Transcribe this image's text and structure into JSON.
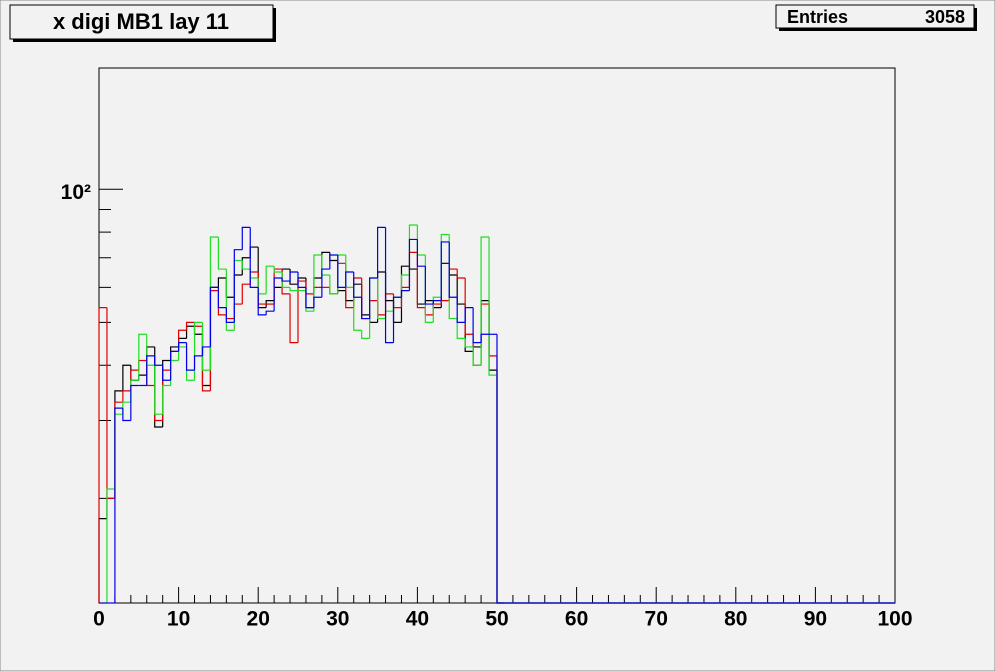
{
  "chart_data": {
    "type": "histogram",
    "title": "x digi MB1 lay 11",
    "stats": [
      {
        "label": "Entries",
        "value": 3058
      }
    ],
    "log_y": true,
    "bins": [
      0,
      1,
      2,
      3,
      4,
      5,
      6,
      7,
      8,
      9,
      10,
      11,
      12,
      13,
      14,
      15,
      16,
      17,
      18,
      19,
      20,
      21,
      22,
      23,
      24,
      25,
      26,
      27,
      28,
      29,
      30,
      31,
      32,
      33,
      34,
      35,
      36,
      37,
      38,
      39,
      40,
      41,
      42,
      43,
      44,
      45,
      46,
      47,
      48,
      49,
      50,
      51,
      52,
      53,
      54,
      55,
      56,
      57,
      58,
      59,
      60,
      61,
      62,
      63,
      64,
      65,
      66,
      67,
      68,
      69,
      70,
      71,
      72,
      73,
      74,
      75,
      76,
      77,
      78,
      79,
      80,
      81,
      82,
      83,
      84,
      85,
      86,
      87,
      88,
      89,
      90,
      91,
      92,
      93,
      94,
      95,
      96,
      97,
      98,
      99,
      100
    ],
    "series": [
      {
        "color": "#000000",
        "values": [
          18,
          20,
          35,
          40,
          37,
          38,
          44,
          29,
          41,
          44,
          46,
          49,
          47,
          36,
          60,
          63,
          57,
          64,
          70,
          74,
          54,
          56,
          60,
          66,
          61,
          63,
          54,
          63,
          72,
          69,
          59,
          56,
          61,
          52,
          50,
          65,
          56,
          50,
          67,
          66,
          55,
          56,
          54,
          68,
          64,
          55,
          43,
          44,
          56,
          39,
          0,
          0,
          0,
          0,
          0,
          0,
          0,
          0,
          0,
          0,
          0,
          0,
          0,
          0,
          0,
          0,
          0,
          0,
          0,
          0,
          0,
          0,
          0,
          0,
          0,
          0,
          0,
          0,
          0,
          0,
          0,
          0,
          0,
          0,
          0,
          0,
          0,
          0,
          0,
          0,
          0,
          0,
          0,
          0,
          0,
          0,
          0,
          0,
          0,
          0
        ]
      },
      {
        "color": "#e00000",
        "values": [
          54,
          20,
          33,
          35,
          39,
          41,
          36,
          30,
          39,
          43,
          48,
          50,
          49,
          35,
          59,
          52,
          51,
          55,
          61,
          65,
          55,
          55,
          66,
          58,
          45,
          62,
          58,
          60,
          60,
          58,
          68,
          54,
          63,
          51,
          56,
          52,
          58,
          54,
          60,
          72,
          54,
          52,
          55,
          56,
          66,
          63,
          47,
          40,
          55,
          42,
          0,
          0,
          0,
          0,
          0,
          0,
          0,
          0,
          0,
          0,
          0,
          0,
          0,
          0,
          0,
          0,
          0,
          0,
          0,
          0,
          0,
          0,
          0,
          0,
          0,
          0,
          0,
          0,
          0,
          0,
          0,
          0,
          0,
          0,
          0,
          0,
          0,
          0,
          0,
          0,
          0,
          0,
          0,
          0,
          0,
          0,
          0,
          0,
          0,
          0
        ]
      },
      {
        "color": "#22dd22",
        "values": [
          0,
          21,
          31,
          33,
          37,
          47,
          40,
          31,
          36,
          41,
          44,
          37,
          50,
          39,
          78,
          66,
          48,
          69,
          66,
          63,
          58,
          67,
          65,
          60,
          59,
          59,
          53,
          71,
          64,
          58,
          71,
          60,
          48,
          46,
          63,
          51,
          53,
          57,
          64,
          83,
          71,
          50,
          57,
          79,
          51,
          46,
          44,
          40,
          78,
          38,
          0,
          0,
          0,
          0,
          0,
          0,
          0,
          0,
          0,
          0,
          0,
          0,
          0,
          0,
          0,
          0,
          0,
          0,
          0,
          0,
          0,
          0,
          0,
          0,
          0,
          0,
          0,
          0,
          0,
          0,
          0,
          0,
          0,
          0,
          0,
          0,
          0,
          0,
          0,
          0,
          0,
          0,
          0,
          0,
          0,
          0,
          0,
          0,
          0,
          0
        ]
      },
      {
        "color": "#0000ee",
        "values": [
          0,
          0,
          32,
          30,
          36,
          36,
          42,
          40,
          37,
          43,
          45,
          39,
          42,
          44,
          60,
          54,
          50,
          73,
          82,
          60,
          52,
          53,
          63,
          62,
          65,
          60,
          54,
          57,
          66,
          71,
          60,
          65,
          57,
          51,
          63,
          82,
          45,
          57,
          59,
          77,
          67,
          55,
          56,
          76,
          57,
          50,
          54,
          45,
          47,
          47,
          0,
          0,
          0,
          0,
          0,
          0,
          0,
          0,
          0,
          0,
          0,
          0,
          0,
          0,
          0,
          0,
          0,
          0,
          0,
          0,
          0,
          0,
          0,
          0,
          0,
          0,
          0,
          0,
          0,
          0,
          0,
          0,
          0,
          0,
          0,
          0,
          0,
          0,
          0,
          0,
          0,
          0,
          0,
          0,
          0,
          0,
          0,
          0,
          0,
          0
        ]
      }
    ],
    "xlim": [
      0,
      100
    ],
    "xticks": [
      0,
      10,
      20,
      30,
      40,
      50,
      60,
      70,
      80,
      90,
      100
    ],
    "xminorticks": [
      2,
      4,
      6,
      8,
      12,
      14,
      16,
      18,
      22,
      24,
      26,
      28,
      32,
      34,
      36,
      38,
      42,
      44,
      46,
      48,
      52,
      54,
      56,
      58,
      62,
      64,
      66,
      68,
      72,
      74,
      76,
      78,
      82,
      84,
      86,
      88,
      92,
      94,
      96,
      98
    ],
    "ylim": [
      11.6,
      188
    ],
    "yticks": [
      {
        "value": 100,
        "label": "10²"
      }
    ],
    "yminorticks": [
      20,
      30,
      40,
      50,
      60,
      70,
      80,
      90
    ]
  }
}
